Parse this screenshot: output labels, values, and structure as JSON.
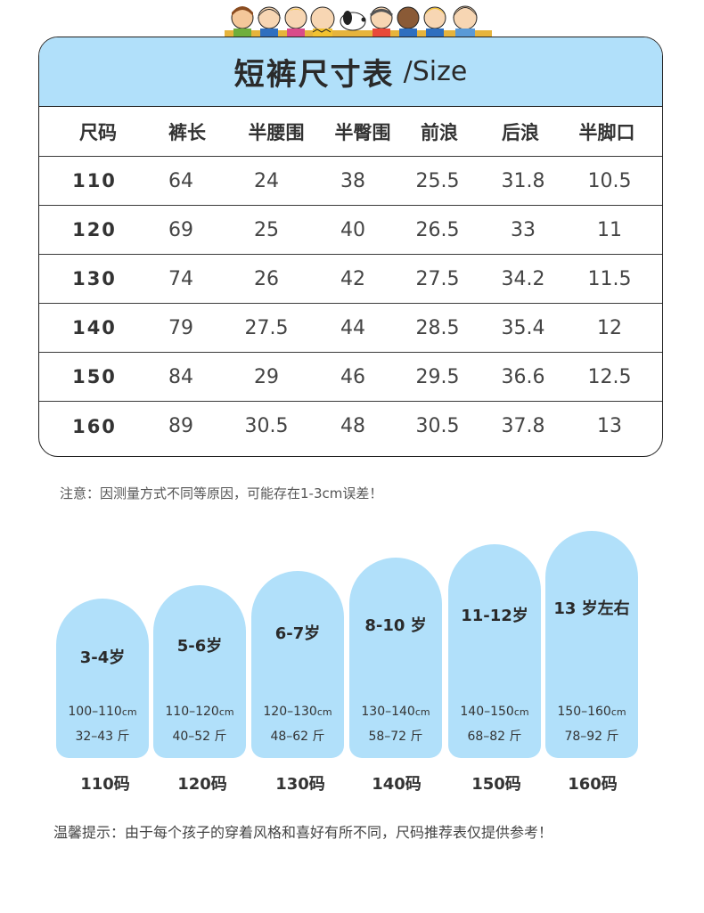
{
  "page": {
    "background": "#ffffff",
    "accent": "#b1e0fa"
  },
  "banner": {
    "icon": "cartoon-characters-banner"
  },
  "table": {
    "title_cn": "短裤尺寸表",
    "title_en": "/Size",
    "columns": [
      "尺码",
      "裤长",
      "半腰围",
      "半臀围",
      "前浪",
      "后浪",
      "半脚口"
    ],
    "rows": [
      [
        "110",
        "64",
        "24",
        "38",
        "25.5",
        "31.8",
        "10.5"
      ],
      [
        "120",
        "69",
        "25",
        "40",
        "26.5",
        "33",
        "11"
      ],
      [
        "130",
        "74",
        "26",
        "42",
        "27.5",
        "34.2",
        "11.5"
      ],
      [
        "140",
        "79",
        "27.5",
        "44",
        "28.5",
        "35.4",
        "12"
      ],
      [
        "150",
        "84",
        "29",
        "46",
        "29.5",
        "36.6",
        "12.5"
      ],
      [
        "160",
        "89",
        "30.5",
        "48",
        "30.5",
        "37.8",
        "13"
      ]
    ]
  },
  "note": "注意：因测量方式不同等原因，可能存在1-3cm误差！",
  "recommend": [
    {
      "age": "3-4岁",
      "height": "100–110",
      "unit": "cm",
      "weight": "32–43 斤",
      "code": "110码"
    },
    {
      "age": "5-6岁",
      "height": "110–120",
      "unit": "cm",
      "weight": "40–52 斤",
      "code": "120码"
    },
    {
      "age": "6-7岁",
      "height": "120–130",
      "unit": "cm",
      "weight": "48–62 斤",
      "code": "130码"
    },
    {
      "age": "8-10 岁",
      "height": "130–140",
      "unit": "cm",
      "weight": "58–72 斤",
      "code": "140码"
    },
    {
      "age": "11-12岁",
      "height": "140–150",
      "unit": "cm",
      "weight": "68–82 斤",
      "code": "150码"
    },
    {
      "age": "13 岁左右",
      "height": "150–160",
      "unit": "cm",
      "weight": "78–92 斤",
      "code": "160码"
    }
  ],
  "tip": "温馨提示：由于每个孩子的穿着风格和喜好有所不同，尺码推荐表仅提供参考！"
}
